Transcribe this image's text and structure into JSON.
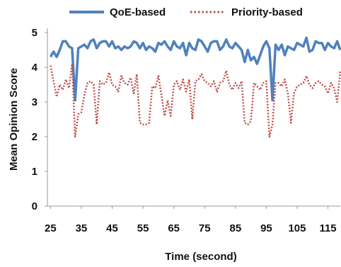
{
  "chart_data": {
    "type": "line",
    "xlabel": "Time (second)",
    "ylabel": "Mean Opinion Score",
    "xlim": [
      24,
      119
    ],
    "ylim": [
      0,
      5
    ],
    "x_ticks": [
      25,
      35,
      45,
      55,
      65,
      75,
      85,
      95,
      105,
      115
    ],
    "y_ticks": [
      0,
      1,
      2,
      3,
      4,
      5
    ],
    "grid": false,
    "legend_position": "top",
    "colors": {
      "qoe": "#4f81bd",
      "priority": "#c0504d"
    },
    "series": [
      {
        "name": "QoE-based",
        "style": "solid",
        "x": [
          25,
          26,
          27,
          28,
          29,
          30,
          31,
          32,
          33,
          34,
          35,
          36,
          37,
          38,
          39,
          40,
          41,
          42,
          43,
          44,
          45,
          46,
          47,
          48,
          49,
          50,
          51,
          52,
          53,
          54,
          55,
          56,
          57,
          58,
          59,
          60,
          61,
          62,
          63,
          64,
          65,
          66,
          67,
          68,
          69,
          70,
          71,
          72,
          73,
          74,
          75,
          76,
          77,
          78,
          79,
          80,
          81,
          82,
          83,
          84,
          85,
          86,
          87,
          88,
          89,
          90,
          91,
          92,
          93,
          94,
          95,
          96,
          97,
          98,
          99,
          100,
          101,
          102,
          103,
          104,
          105,
          106,
          107,
          108,
          109,
          110,
          111,
          112,
          113,
          114,
          115,
          116,
          117,
          118,
          119
        ],
        "values": [
          4.3,
          4.45,
          4.3,
          4.5,
          4.75,
          4.75,
          4.6,
          4.55,
          3.05,
          4.55,
          4.6,
          4.65,
          4.55,
          4.75,
          4.8,
          4.55,
          4.7,
          4.75,
          4.75,
          4.6,
          4.75,
          4.55,
          4.6,
          4.5,
          4.6,
          4.55,
          4.6,
          4.75,
          4.7,
          4.55,
          4.7,
          4.5,
          4.6,
          4.55,
          4.45,
          4.7,
          4.65,
          4.75,
          4.6,
          4.5,
          4.75,
          4.6,
          4.55,
          4.7,
          4.35,
          4.7,
          4.55,
          4.5,
          4.8,
          4.75,
          4.6,
          4.45,
          4.7,
          4.75,
          4.75,
          4.5,
          4.6,
          4.8,
          4.6,
          4.55,
          4.7,
          4.6,
          4.5,
          4.15,
          4.5,
          4.2,
          4.3,
          4.1,
          4.35,
          4.6,
          4.75,
          4.55,
          3.05,
          4.65,
          4.5,
          4.65,
          4.35,
          4.6,
          4.55,
          4.5,
          4.7,
          4.65,
          4.6,
          4.85,
          4.45,
          4.5,
          4.75,
          4.7,
          4.7,
          4.5,
          4.7,
          4.6,
          4.55,
          4.75,
          4.5
        ]
      },
      {
        "name": "Priority-based",
        "style": "dotted",
        "x": [
          25,
          26,
          27,
          28,
          29,
          30,
          31,
          32,
          33,
          34,
          35,
          36,
          37,
          38,
          39,
          40,
          41,
          42,
          43,
          44,
          45,
          46,
          47,
          48,
          49,
          50,
          51,
          52,
          53,
          54,
          55,
          56,
          57,
          58,
          59,
          60,
          61,
          62,
          63,
          64,
          65,
          66,
          67,
          68,
          69,
          70,
          71,
          72,
          73,
          74,
          75,
          76,
          77,
          78,
          79,
          80,
          81,
          82,
          83,
          84,
          85,
          86,
          87,
          88,
          89,
          90,
          91,
          92,
          93,
          94,
          95,
          96,
          97,
          98,
          99,
          100,
          101,
          102,
          103,
          104,
          105,
          106,
          107,
          108,
          109,
          110,
          111,
          112,
          113,
          114,
          115,
          116,
          117,
          118,
          119
        ],
        "values": [
          4.05,
          3.6,
          3.15,
          3.5,
          3.35,
          3.65,
          3.4,
          4.1,
          2.0,
          2.65,
          2.7,
          3.2,
          3.55,
          3.6,
          3.5,
          2.35,
          3.6,
          3.5,
          3.55,
          3.85,
          3.5,
          3.45,
          3.3,
          3.75,
          3.55,
          3.5,
          3.7,
          3.25,
          3.8,
          2.4,
          2.35,
          2.35,
          2.4,
          3.45,
          3.4,
          3.75,
          3.2,
          2.6,
          3.05,
          2.6,
          3.5,
          3.6,
          3.35,
          3.65,
          3.3,
          3.65,
          2.5,
          3.6,
          3.65,
          3.8,
          3.6,
          3.55,
          3.45,
          3.6,
          3.3,
          3.55,
          3.6,
          3.9,
          3.5,
          3.35,
          3.55,
          3.4,
          3.6,
          2.4,
          2.35,
          2.45,
          3.55,
          3.45,
          3.35,
          3.55,
          3.6,
          2.0,
          2.35,
          3.55,
          3.55,
          3.45,
          3.65,
          3.25,
          2.4,
          3.25,
          3.45,
          3.5,
          3.55,
          3.75,
          3.5,
          3.4,
          3.55,
          3.6,
          3.5,
          3.45,
          3.25,
          3.55,
          3.4,
          3.0,
          3.9
        ]
      }
    ]
  }
}
